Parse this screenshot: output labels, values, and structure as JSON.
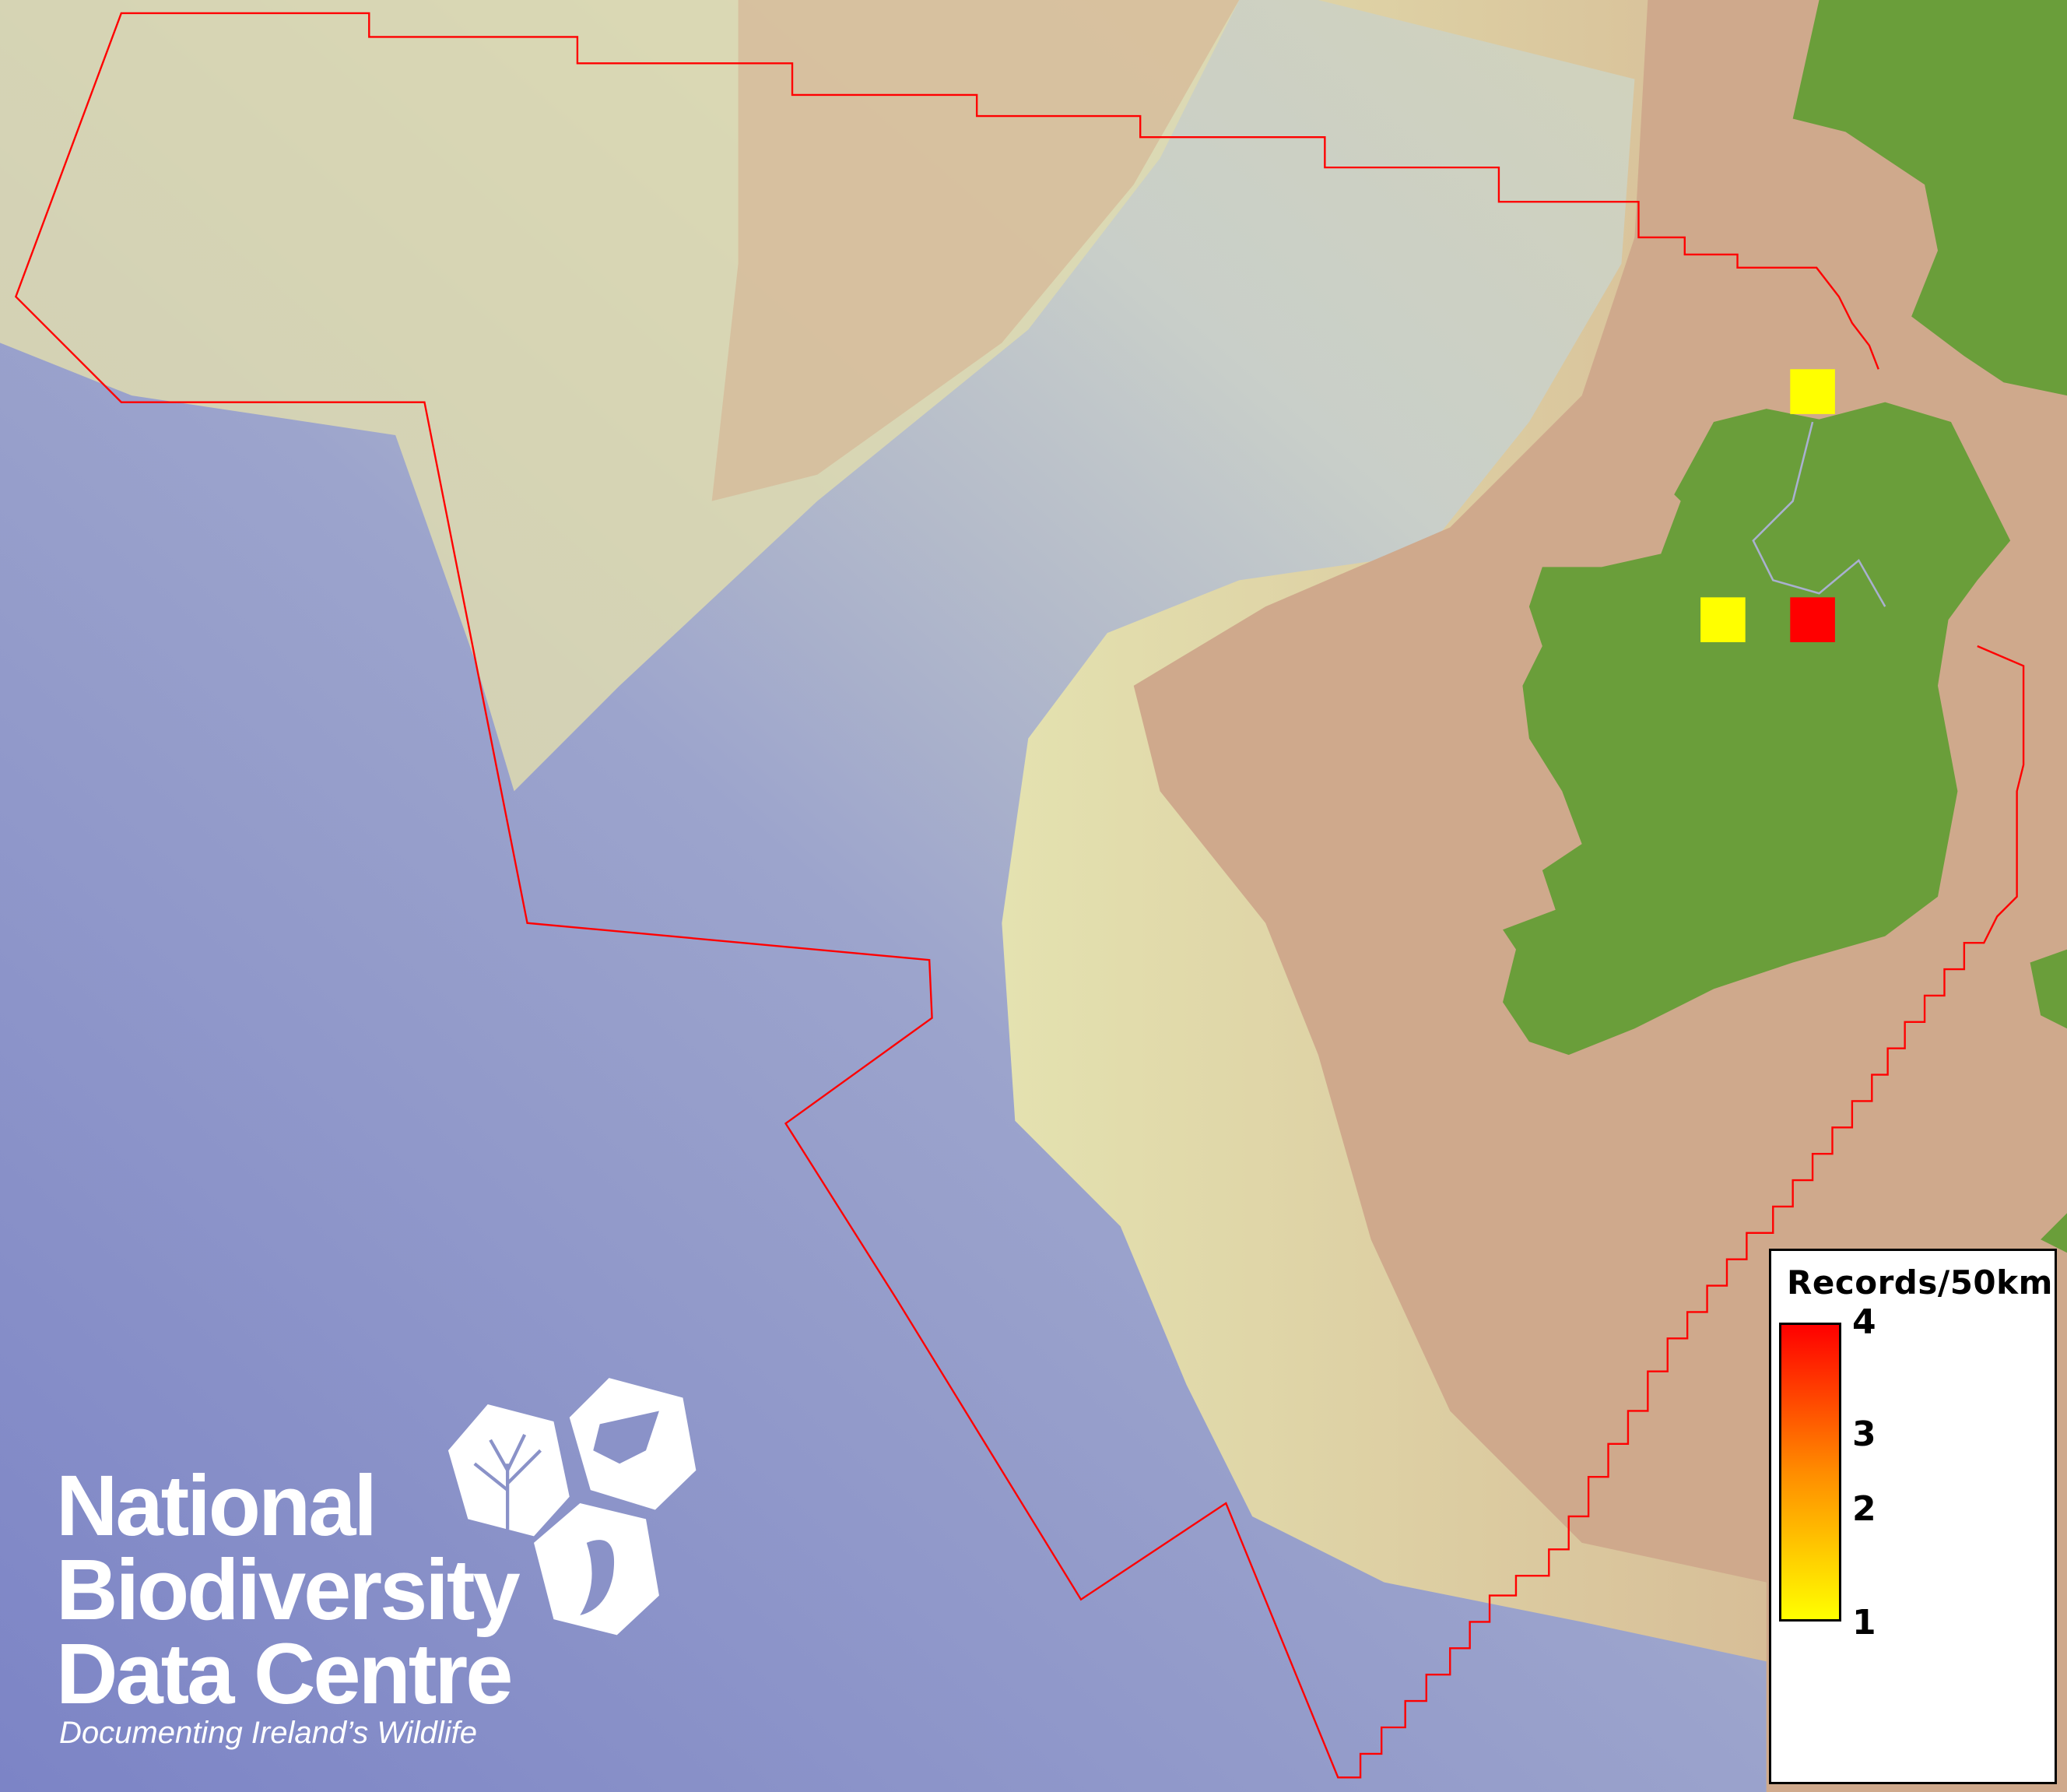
{
  "map": {
    "colors": {
      "land_ireland": "#6a9e3a",
      "deep_ocean": "#7f86c4",
      "shelf": "#d8d6b0",
      "shallow_sea": "#cda98a",
      "boundary": "#ff0000"
    },
    "record_cells": [
      {
        "value": 1,
        "color": "#ffff00"
      },
      {
        "value": 1,
        "color": "#ffff00"
      },
      {
        "value": 4,
        "color": "#ff0000"
      }
    ]
  },
  "legend": {
    "title": "Records/50km",
    "ticks": [
      "4",
      "3",
      "2",
      "1"
    ],
    "gradient": {
      "min_color": "#ffff00",
      "mid_color": "#ff8c00",
      "max_color": "#ff0000"
    },
    "range": [
      1,
      4
    ]
  },
  "logo": {
    "line1": "National",
    "line2": "Biodiversity",
    "line3": "Data Centre",
    "tagline": "Documenting Ireland’s Wildlife",
    "icons": [
      "tree-icon",
      "butterfly-icon",
      "seahorse-icon"
    ]
  }
}
